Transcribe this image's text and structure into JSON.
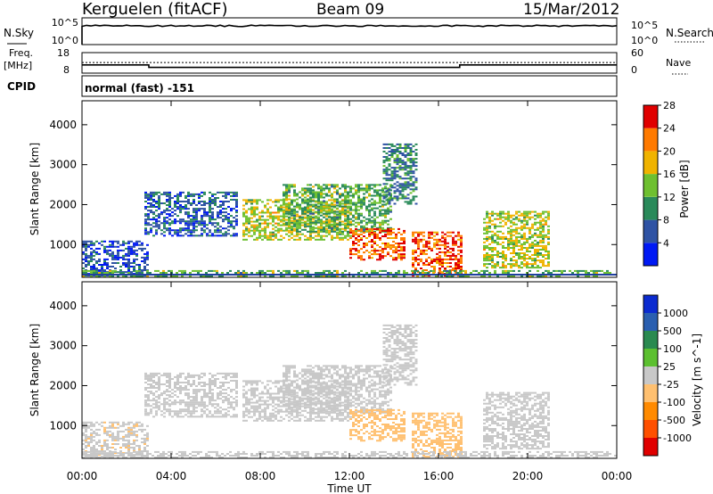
{
  "header": {
    "station": "Kerguelen (fitACF)",
    "beam": "Beam 09",
    "date": "15/Mar/2012"
  },
  "noise_panel": {
    "left_label": "N.Sky",
    "right_label": "N.Search",
    "left_ticks": [
      "10^5",
      "10^0"
    ],
    "right_ticks": [
      "10^5",
      "10^0"
    ]
  },
  "freq_panel": {
    "left_label_1": "Freq.",
    "left_label_2": "[MHz]",
    "right_label": "Nave",
    "left_ticks": [
      "18",
      "8"
    ],
    "right_ticks": [
      "60",
      "0"
    ],
    "frequency_steps": [
      {
        "from_hr": 0,
        "to_hr": 3.0,
        "mhz": 12.0
      },
      {
        "from_hr": 3.0,
        "to_hr": 16.95,
        "mhz": 10.8
      },
      {
        "from_hr": 16.95,
        "to_hr": 24,
        "mhz": 12.0
      }
    ],
    "nave_level": 31
  },
  "cpid": {
    "label": "CPID",
    "mode": "normal (fast)  -151"
  },
  "time_axis": {
    "ticks": [
      "00:00",
      "04:00",
      "08:00",
      "12:00",
      "16:00",
      "20:00",
      "00:00"
    ],
    "label": "Time UT"
  },
  "power_panel": {
    "ylabel": "Slant Range [km]",
    "yticks": [
      "1000",
      "2000",
      "3000",
      "4000"
    ],
    "colorbar_label": "Power [dB]",
    "colorbar_ticks": [
      "4",
      "8",
      "12",
      "16",
      "20",
      "24",
      "28"
    ],
    "colors": [
      "#0019f4",
      "#2f53a4",
      "#2a8a5a",
      "#6ec030",
      "#f0b300",
      "#ff7a00",
      "#e00000"
    ]
  },
  "velocity_panel": {
    "ylabel": "Slant Range [km]",
    "yticks": [
      "1000",
      "2000",
      "3000",
      "4000"
    ],
    "colorbar_label": "Velocity [m s^-1]",
    "colorbar_ticks": [
      "1000",
      "500",
      "100",
      "25",
      "-25",
      "-100",
      "-500",
      "-1000"
    ],
    "colors": [
      "#0b2bd0",
      "#2a5fb0",
      "#2a8a50",
      "#5cc030",
      "#c8c8c8",
      "#ffc070",
      "#ff8a00",
      "#ff5000",
      "#e00000"
    ]
  },
  "chart_data": {
    "type": "heatmap",
    "x": {
      "label": "Time UT",
      "unit": "hours",
      "range": [
        0,
        24
      ]
    },
    "y": {
      "label": "Slant Range [km]",
      "unit": "km",
      "range": [
        180,
        4600
      ]
    },
    "power_dB_range": [
      0,
      32
    ],
    "velocity_range_m_s": [
      -1200,
      1200
    ],
    "echo_regions": [
      {
        "t": [
          0.0,
          3.0
        ],
        "r": [
          200,
          1100
        ],
        "power_dB": 6,
        "velocity": -90
      },
      {
        "t": [
          2.8,
          7.0
        ],
        "r": [
          1200,
          2300
        ],
        "power_dB": 7,
        "velocity": -40
      },
      {
        "t": [
          7.2,
          12.0
        ],
        "r": [
          1100,
          2100
        ],
        "power_dB": 18,
        "velocity": -20
      },
      {
        "t": [
          9.0,
          13.8
        ],
        "r": [
          1300,
          2500
        ],
        "power_dB": 14,
        "velocity": -30
      },
      {
        "t": [
          12.0,
          14.5
        ],
        "r": [
          600,
          1400
        ],
        "power_dB": 26,
        "velocity": -300
      },
      {
        "t": [
          13.5,
          15.0
        ],
        "r": [
          2000,
          3500
        ],
        "power_dB": 10,
        "velocity": -30
      },
      {
        "t": [
          14.8,
          17.0
        ],
        "r": [
          200,
          1300
        ],
        "power_dB": 27,
        "velocity": -200
      },
      {
        "t": [
          18.0,
          21.0
        ],
        "r": [
          400,
          1800
        ],
        "power_dB": 18,
        "velocity": 20
      },
      {
        "t": [
          0.0,
          24.0
        ],
        "r": [
          180,
          350
        ],
        "power_dB": 14,
        "velocity": -60
      }
    ]
  }
}
